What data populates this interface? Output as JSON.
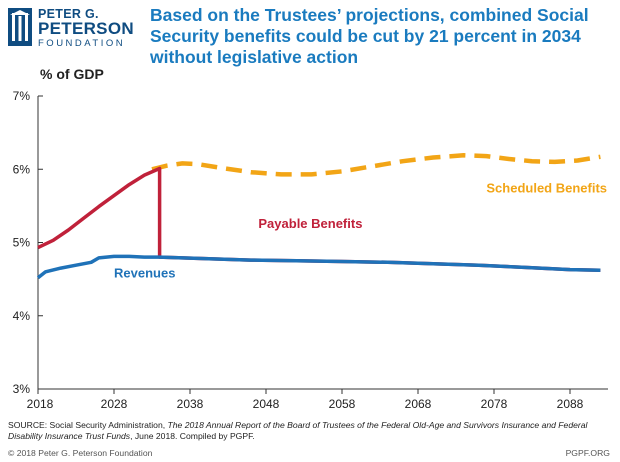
{
  "logo": {
    "line1": "PETER G.",
    "line2": "PETERSON",
    "line3": "FOUNDATION"
  },
  "headline": "Based on the Trustees’ projections, combined Social Security benefits could be cut by 21 percent in 2034 without legislative action",
  "chart_data": {
    "type": "line",
    "ylabel": "% of GDP",
    "xlim": [
      2018,
      2093
    ],
    "ylim": [
      3,
      7
    ],
    "x_ticks": [
      2018,
      2028,
      2038,
      2048,
      2058,
      2068,
      2078,
      2088
    ],
    "y_ticks": [
      3,
      4,
      5,
      6,
      7
    ],
    "y_tick_labels": [
      "3%",
      "4%",
      "5%",
      "6%",
      "7%"
    ],
    "grid": false,
    "series": [
      {
        "name": "Scheduled Benefits",
        "style": "dashed",
        "color": "#f2a516",
        "x": [
          2033,
          2035,
          2037,
          2039,
          2042,
          2046,
          2050,
          2054,
          2058,
          2062,
          2066,
          2070,
          2074,
          2077,
          2080,
          2083,
          2086,
          2089,
          2092
        ],
        "y": [
          6.0,
          6.05,
          6.08,
          6.07,
          6.02,
          5.96,
          5.93,
          5.93,
          5.97,
          6.04,
          6.11,
          6.16,
          6.19,
          6.18,
          6.14,
          6.11,
          6.1,
          6.12,
          6.17
        ]
      },
      {
        "name": "Payable Benefits",
        "style": "solid",
        "color": "#c0213a",
        "x": [
          2018,
          2020,
          2022,
          2024,
          2026,
          2028,
          2030,
          2032,
          2034,
          2034,
          2040,
          2046,
          2052,
          2058,
          2064,
          2070,
          2076,
          2082,
          2088,
          2092
        ],
        "y": [
          4.93,
          5.03,
          5.17,
          5.33,
          5.49,
          5.64,
          5.79,
          5.92,
          6.01,
          4.8,
          4.78,
          4.76,
          4.75,
          4.74,
          4.73,
          4.71,
          4.69,
          4.66,
          4.63,
          4.62
        ]
      },
      {
        "name": "Revenues",
        "style": "solid",
        "color": "#1f72b8",
        "x": [
          2018,
          2019,
          2021,
          2023,
          2025,
          2026,
          2028,
          2030,
          2032,
          2034,
          2040,
          2046,
          2052,
          2058,
          2064,
          2070,
          2076,
          2082,
          2088,
          2092
        ],
        "y": [
          4.52,
          4.6,
          4.65,
          4.69,
          4.73,
          4.79,
          4.81,
          4.81,
          4.8,
          4.8,
          4.78,
          4.76,
          4.75,
          4.74,
          4.73,
          4.71,
          4.69,
          4.66,
          4.63,
          4.62
        ]
      }
    ],
    "annotations": [
      {
        "text": "Scheduled Benefits",
        "series": "Scheduled Benefits",
        "x": 2077,
        "y": 5.68
      },
      {
        "text": "Payable Benefits",
        "series": "Payable Benefits",
        "x": 2047,
        "y": 5.2
      },
      {
        "text": "Revenues",
        "series": "Revenues",
        "x": 2028,
        "y": 4.52
      }
    ]
  },
  "footer": {
    "source_prefix": "SOURCE: Social Security Administration, ",
    "source_title": "The 2018 Annual Report of the Board of Trustees of the Federal Old-Age and Survivors Insurance and Federal Disability Insurance Trust Funds",
    "source_suffix": ", June 2018. Compiled by PGPF.",
    "copyright": "© 2018 Peter G. Peterson Foundation",
    "site": "PGPF.ORG"
  }
}
